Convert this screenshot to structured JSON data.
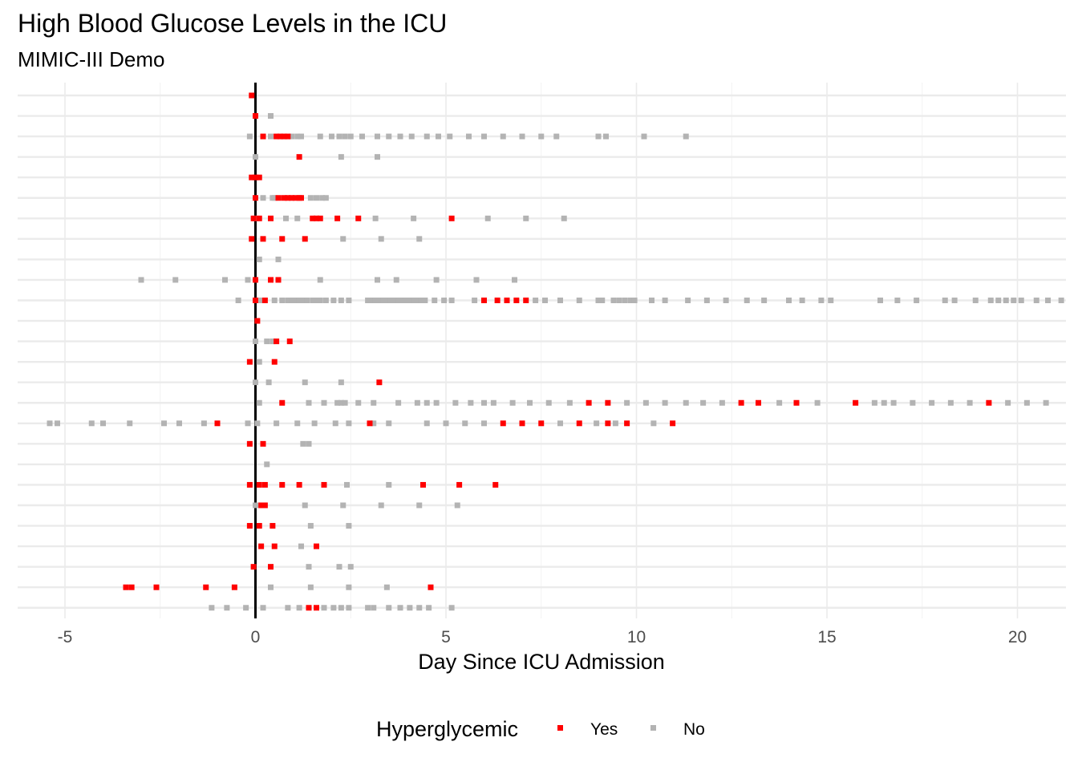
{
  "chart_data": {
    "type": "scatter",
    "title": "High Blood Glucose Levels in the ICU",
    "subtitle": "MIMIC-III Demo",
    "xlabel": "Day Since ICU Admission",
    "ylabel": "",
    "xlim": [
      -5.6,
      21.2
    ],
    "x_ticks": [
      -5,
      0,
      5,
      10,
      15,
      20
    ],
    "x_tick_labels": [
      "-5",
      "0",
      "5",
      "10",
      "15",
      "20"
    ],
    "row_count": 26,
    "reference_line_x": 0,
    "grid": true,
    "legend": {
      "title": "Hyperglycemic",
      "position": "bottom",
      "items": [
        {
          "label": "Yes",
          "color": "#ff0000"
        },
        {
          "label": "No",
          "color": "#b3b3b3"
        }
      ]
    },
    "rows": [
      {
        "yes": [
          -0.1
        ],
        "no": []
      },
      {
        "yes": [
          0.0
        ],
        "no": [
          0.4
        ]
      },
      {
        "yes": [
          0.2,
          0.55,
          0.65,
          0.75,
          0.85
        ],
        "no": [
          -0.15,
          0.4,
          0.95,
          1.1,
          1.2,
          1.7,
          2.0,
          2.2,
          2.35,
          2.5,
          2.8,
          3.2,
          3.5,
          3.8,
          4.1,
          4.5,
          4.8,
          5.1,
          5.6,
          6.0,
          6.5,
          7.0,
          7.5,
          7.9,
          9.0,
          9.2,
          10.2,
          11.3
        ]
      },
      {
        "yes": [
          1.15
        ],
        "no": [
          0.0,
          2.25,
          3.2
        ]
      },
      {
        "yes": [
          -0.1,
          0.0,
          0.1
        ],
        "no": []
      },
      {
        "yes": [
          0.0,
          0.6,
          0.75,
          0.85,
          0.95,
          1.05,
          1.15,
          1.2
        ],
        "no": [
          0.2,
          0.45,
          0.5,
          1.45,
          1.6,
          1.75,
          1.85
        ]
      },
      {
        "yes": [
          -0.05,
          0.1,
          0.4,
          1.5,
          1.6,
          1.7,
          2.15,
          2.7,
          5.15
        ],
        "no": [
          0.0,
          0.8,
          1.1,
          3.15,
          4.15,
          6.1,
          7.1,
          8.1
        ]
      },
      {
        "yes": [
          -0.1,
          0.2,
          0.7,
          1.3
        ],
        "no": [
          2.3,
          3.3,
          4.3
        ]
      },
      {
        "yes": [],
        "no": [
          0.1,
          0.6
        ]
      },
      {
        "yes": [
          0.0,
          0.4,
          0.6
        ],
        "no": [
          -3.0,
          -2.1,
          -0.8,
          -0.2,
          1.7,
          3.2,
          3.7,
          4.75,
          5.8,
          6.8
        ]
      },
      {
        "yes": [
          0.0,
          0.25,
          6.0,
          6.35,
          6.6,
          6.85,
          7.1
        ],
        "no": [
          -0.45,
          0.15,
          0.5,
          0.7,
          0.85,
          0.95,
          1.05,
          1.15,
          1.25,
          1.35,
          1.5,
          1.6,
          1.7,
          1.85,
          2.05,
          2.25,
          2.45,
          2.95,
          3.05,
          3.15,
          3.25,
          3.35,
          3.45,
          3.55,
          3.65,
          3.75,
          3.85,
          3.95,
          4.05,
          4.15,
          4.25,
          4.35,
          4.45,
          4.7,
          4.95,
          5.15,
          5.75,
          7.35,
          7.6,
          8.0,
          8.5,
          9.0,
          9.1,
          9.4,
          9.55,
          9.7,
          9.85,
          9.95,
          10.4,
          10.75,
          11.35,
          11.85,
          12.35,
          12.9,
          13.35,
          14.0,
          14.35,
          14.85,
          15.1,
          16.4,
          16.85,
          17.35,
          18.1,
          18.35,
          18.9,
          19.3,
          19.5,
          19.7,
          19.9,
          20.1,
          20.5,
          20.8,
          21.15
        ]
      },
      {
        "yes": [
          0.05
        ],
        "no": []
      },
      {
        "yes": [
          0.55,
          0.9
        ],
        "no": [
          0.0,
          0.3,
          0.45
        ]
      },
      {
        "yes": [
          -0.15,
          0.5
        ],
        "no": [
          0.1
        ]
      },
      {
        "yes": [
          3.25
        ],
        "no": [
          0.0,
          0.35,
          1.3,
          2.25
        ]
      },
      {
        "yes": [
          0.7,
          8.75,
          9.25,
          12.75,
          13.2,
          14.2,
          15.75,
          19.25
        ],
        "no": [
          0.1,
          1.4,
          1.8,
          2.15,
          2.25,
          2.35,
          2.7,
          3.1,
          3.75,
          4.25,
          4.5,
          4.75,
          5.25,
          5.65,
          6.0,
          6.25,
          6.75,
          7.2,
          7.7,
          8.25,
          9.75,
          10.25,
          10.75,
          11.3,
          11.75,
          12.25,
          13.75,
          14.75,
          16.25,
          16.5,
          16.75,
          17.25,
          17.75,
          18.25,
          18.75,
          19.75,
          20.25,
          20.75
        ]
      },
      {
        "yes": [
          -1.0,
          3.0,
          6.5,
          7.0,
          7.5,
          8.5,
          9.25,
          9.75,
          10.95
        ],
        "no": [
          -5.4,
          -5.2,
          -4.3,
          -4.0,
          -3.3,
          -2.4,
          -2.0,
          -1.35,
          -0.2,
          0.05,
          0.55,
          1.1,
          1.55,
          2.1,
          2.45,
          3.1,
          3.5,
          4.5,
          5.0,
          5.5,
          6.0,
          8.0,
          8.95,
          9.45,
          10.45
        ]
      },
      {
        "yes": [
          -0.15,
          0.2
        ],
        "no": [
          1.25,
          1.4
        ]
      },
      {
        "yes": [],
        "no": [
          0.3
        ]
      },
      {
        "yes": [
          -0.15,
          0.1,
          0.25,
          0.7,
          1.15,
          1.8,
          4.4,
          5.35,
          6.3
        ],
        "no": [
          2.4,
          3.5
        ]
      },
      {
        "yes": [
          0.15,
          0.25
        ],
        "no": [
          0.0,
          1.3,
          2.3,
          3.3,
          4.3,
          5.3
        ]
      },
      {
        "yes": [
          -0.15,
          0.1,
          0.45
        ],
        "no": [
          1.45,
          2.45
        ]
      },
      {
        "yes": [
          0.15,
          0.5,
          1.6
        ],
        "no": [
          1.2
        ]
      },
      {
        "yes": [
          -0.05,
          0.4
        ],
        "no": [
          1.4,
          2.2,
          2.5
        ]
      },
      {
        "yes": [
          -3.4,
          -3.25,
          -2.6,
          -1.3,
          -0.55,
          4.6
        ],
        "no": [
          0.4,
          1.45,
          2.45,
          3.45
        ]
      },
      {
        "yes": [
          1.4,
          1.6
        ],
        "no": [
          -1.15,
          -0.75,
          -0.25,
          0.2,
          0.85,
          1.15,
          1.8,
          2.05,
          2.25,
          2.45,
          2.95,
          3.1,
          3.5,
          3.8,
          4.05,
          4.3,
          4.55,
          5.15
        ]
      }
    ]
  }
}
